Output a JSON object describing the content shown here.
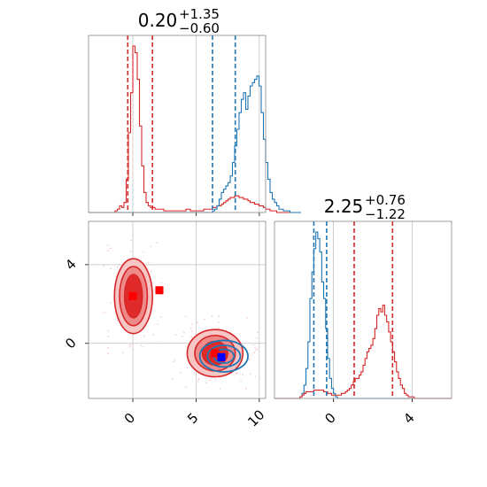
{
  "chart_data": {
    "type": "corner",
    "panels": [
      {
        "id": "param1_marginal",
        "title": {
          "value": "0.20",
          "upper": "+1.35",
          "lower": "−0.60"
        },
        "x_range": [
          -3.5,
          10.5
        ],
        "x_ticks": [
          0,
          5,
          10
        ],
        "series": [
          {
            "color": "#d62728",
            "type": "histogram",
            "bin_start": -3.5,
            "bin_width": 0.175,
            "counts": [
              0,
              0,
              0,
              0,
              0,
              0,
              0,
              0,
              0,
              0,
              0,
              0,
              1,
              2,
              4,
              3,
              6,
              20,
              48,
              72,
              100,
              96,
              80,
              52,
              28,
              12,
              6,
              4,
              3,
              3,
              2,
              2,
              2,
              2,
              1,
              1,
              1,
              1,
              1,
              1,
              1,
              1,
              1,
              1,
              2,
              2,
              1,
              1,
              1,
              1,
              1,
              1,
              2,
              2,
              2,
              2,
              3,
              3,
              4,
              4,
              5,
              6,
              7,
              8,
              9,
              9,
              10,
              10,
              9,
              9,
              8,
              8,
              7,
              6,
              6,
              5,
              5,
              4,
              4,
              3,
              2,
              2,
              1,
              1,
              1,
              0,
              0,
              0,
              0,
              0,
              0,
              0,
              0,
              0,
              0,
              0
            ]
          },
          {
            "color": "#1f77b4",
            "type": "histogram",
            "bin_start": -3.5,
            "bin_width": 0.175,
            "counts": [
              0,
              0,
              0,
              0,
              0,
              0,
              0,
              0,
              0,
              0,
              0,
              0,
              0,
              0,
              0,
              0,
              0,
              0,
              0,
              0,
              0,
              0,
              0,
              0,
              0,
              0,
              0,
              0,
              0,
              0,
              0,
              0,
              0,
              0,
              0,
              0,
              0,
              0,
              0,
              0,
              0,
              0,
              0,
              0,
              0,
              0,
              0,
              0,
              0,
              0,
              0,
              0,
              0,
              0,
              0,
              0,
              1,
              2,
              4,
              8,
              12,
              14,
              16,
              18,
              22,
              30,
              40,
              50,
              60,
              68,
              72,
              62,
              70,
              76,
              78,
              80,
              82,
              76,
              60,
              44,
              30,
              20,
              12,
              8,
              6,
              4,
              2,
              2,
              1,
              1,
              1,
              0,
              0,
              0,
              0,
              0
            ]
          }
        ],
        "quantile_lines": [
          {
            "color": "#d62728",
            "values": [
              -0.4,
              1.55
            ]
          },
          {
            "color": "#1f77b4",
            "values": [
              6.3,
              8.1
            ]
          }
        ]
      },
      {
        "id": "joint",
        "x_range": [
          -3.5,
          10.5
        ],
        "y_range": [
          -2.8,
          6.2
        ],
        "x_ticks": [
          0,
          5,
          10
        ],
        "y_ticks": [
          0,
          4
        ],
        "markers": [
          {
            "color": "#ff0000",
            "x": 0.0,
            "y": 2.4
          },
          {
            "color": "#ff0000",
            "x": 2.1,
            "y": 2.7
          },
          {
            "color": "#ff0000",
            "x": 6.5,
            "y": -0.5
          },
          {
            "color": "#0000ff",
            "x": 7.0,
            "y": -0.7
          }
        ],
        "contours": [
          {
            "color": "#d62728",
            "center": [
              0.05,
              2.4
            ],
            "levels_x": [
              0.7,
              1.1,
              1.5
            ],
            "levels_y": [
              1.1,
              1.5,
              1.9
            ]
          },
          {
            "color": "#d62728",
            "center": [
              6.5,
              -0.5
            ],
            "levels_x": [
              1.0,
              1.6,
              2.2
            ],
            "levels_y": [
              0.6,
              0.9,
              1.2
            ]
          },
          {
            "color": "#1f77b4",
            "center": [
              7.2,
              -0.65
            ],
            "levels_x": [
              0.8,
              1.3,
              1.9
            ],
            "levels_y": [
              0.35,
              0.55,
              0.8
            ]
          }
        ]
      },
      {
        "id": "param2_marginal",
        "title": {
          "value": "2.25",
          "upper": "+0.76",
          "lower": "−1.22"
        },
        "x_range": [
          -3.0,
          6.0
        ],
        "x_ticks": [
          0,
          4
        ],
        "series": [
          {
            "color": "#1f77b4",
            "type": "histogram",
            "bin_start": -3.0,
            "bin_width": 0.1,
            "counts": [
              0,
              0,
              0,
              0,
              0,
              0,
              0,
              0,
              0,
              0,
              0,
              0,
              0,
              1,
              3,
              8,
              18,
              34,
              60,
              76,
              90,
              100,
              96,
              88,
              70,
              60,
              42,
              24,
              12,
              6,
              3,
              1,
              0,
              0,
              0,
              0,
              0,
              0,
              0,
              0,
              0,
              0,
              0,
              0,
              0,
              0,
              0,
              0,
              0,
              0,
              0,
              0,
              0,
              0,
              0,
              0,
              0,
              0,
              0,
              0,
              0,
              0,
              0,
              0,
              0,
              0,
              0,
              0,
              0,
              0,
              0,
              0,
              0,
              0,
              0,
              0,
              0,
              0,
              0,
              0,
              0,
              0,
              0,
              0,
              0,
              0,
              0,
              0,
              0,
              0
            ]
          },
          {
            "color": "#d62728",
            "type": "histogram",
            "bin_start": -3.0,
            "bin_width": 0.1,
            "counts": [
              0,
              0,
              0,
              0,
              0,
              0,
              0,
              0,
              0,
              0,
              0,
              0,
              0,
              1,
              2,
              3,
              4,
              4,
              4,
              4,
              5,
              5,
              5,
              5,
              5,
              4,
              4,
              3,
              3,
              2,
              2,
              2,
              2,
              2,
              3,
              3,
              4,
              5,
              6,
              8,
              10,
              12,
              12,
              14,
              16,
              20,
              24,
              28,
              30,
              32,
              36,
              42,
              50,
              54,
              52,
              56,
              50,
              46,
              40,
              34,
              28,
              22,
              16,
              12,
              8,
              6,
              3,
              2,
              1,
              1,
              1,
              0,
              0,
              0,
              0,
              0,
              0,
              0,
              0,
              0,
              0,
              0,
              0,
              0,
              0,
              0,
              0,
              0,
              0,
              0
            ]
          }
        ],
        "quantile_lines": [
          {
            "color": "#1f77b4",
            "values": [
              -1.0,
              -0.35
            ]
          },
          {
            "color": "#d62728",
            "values": [
              1.05,
              3.0
            ]
          }
        ]
      }
    ]
  }
}
